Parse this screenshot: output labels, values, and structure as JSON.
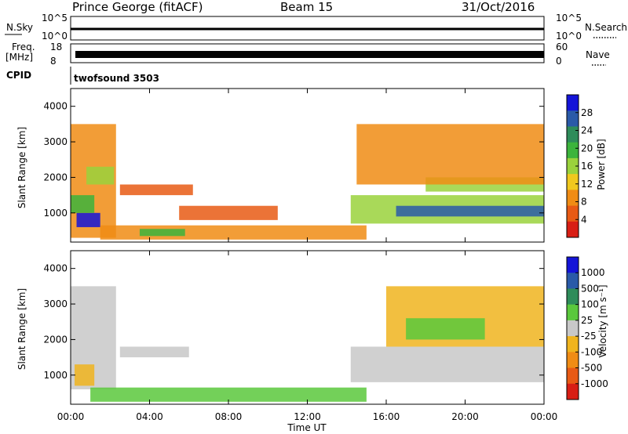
{
  "header": {
    "station": "Prince George (fitACF)",
    "beam": "Beam 15",
    "date": "31/Oct/2016"
  },
  "strip": {
    "nsky_label": "N.Sky",
    "nsky_ticks": [
      "10^5",
      "10^0"
    ],
    "nsearch_label": "N.Search",
    "nsearch_ticks": [
      "10^5",
      "10^0"
    ],
    "freq_label": "Freq.",
    "freq_unit": "[MHz]",
    "freq_ticks": [
      "18",
      "8"
    ],
    "nave_label": "Nave",
    "nave_ticks": [
      "60",
      "0"
    ],
    "cpid_label": "CPID",
    "cpid_value": "twofsound 3503"
  },
  "colors": {
    "power_scale": [
      "#1414d8",
      "#2a5aa8",
      "#2e8c5a",
      "#3cb43c",
      "#9ad23c",
      "#f0c81e",
      "#f08c14",
      "#e85a14",
      "#d81e14"
    ],
    "velocity_scale": [
      "#1414d8",
      "#2a5aa8",
      "#2e8c5a",
      "#5ac83c",
      "#c8c8c8",
      "#f0b41e",
      "#f08c14",
      "#e85a14",
      "#d81e14"
    ],
    "ground_scatter": "#c0c0c0"
  },
  "chart_data": [
    {
      "type": "heatmap",
      "panel": "power",
      "xlabel": "Time UT",
      "ylabel": "Slant Range [km]",
      "xlim": [
        0,
        24
      ],
      "ylim": [
        180,
        4500
      ],
      "x_ticks": [
        "00:00",
        "04:00",
        "08:00",
        "12:00",
        "16:00",
        "20:00",
        "00:00"
      ],
      "y_ticks": [
        1000,
        2000,
        3000,
        4000
      ],
      "colorbar": {
        "label": "Power [dB]",
        "ticks": [
          "28",
          "24",
          "20",
          "16",
          "12",
          "8",
          "4"
        ],
        "range": [
          0,
          30
        ]
      },
      "regions": [
        {
          "t0": 0.0,
          "t1": 2.3,
          "r0": 300,
          "r1": 3500,
          "value": 10
        },
        {
          "t0": 0.3,
          "t1": 1.5,
          "r0": 600,
          "r1": 1000,
          "value": 27
        },
        {
          "t0": 0.0,
          "t1": 1.2,
          "r0": 1000,
          "r1": 1500,
          "value": 18
        },
        {
          "t0": 0.8,
          "t1": 2.2,
          "r0": 1800,
          "r1": 2300,
          "value": 14
        },
        {
          "t0": 1.5,
          "t1": 15.0,
          "r0": 250,
          "r1": 650,
          "value": 8
        },
        {
          "t0": 3.5,
          "t1": 5.8,
          "r0": 350,
          "r1": 550,
          "value": 20
        },
        {
          "t0": 2.5,
          "t1": 6.2,
          "r0": 1500,
          "r1": 1800,
          "value": 6
        },
        {
          "t0": 5.5,
          "t1": 10.5,
          "r0": 800,
          "r1": 1200,
          "value": 6
        },
        {
          "t0": 14.2,
          "t1": 24.0,
          "r0": 700,
          "r1": 1500,
          "value": 14
        },
        {
          "t0": 16.5,
          "t1": 24.0,
          "r0": 900,
          "r1": 1200,
          "value": 24
        },
        {
          "t0": 18.0,
          "t1": 24.0,
          "r0": 1600,
          "r1": 2000,
          "value": 16
        },
        {
          "t0": 14.5,
          "t1": 24.0,
          "r0": 1800,
          "r1": 3500,
          "value": 8
        }
      ]
    },
    {
      "type": "heatmap",
      "panel": "velocity",
      "xlabel": "Time UT",
      "ylabel": "Slant Range [km]",
      "xlim": [
        0,
        24
      ],
      "ylim": [
        180,
        4500
      ],
      "x_ticks": [
        "00:00",
        "04:00",
        "08:00",
        "12:00",
        "16:00",
        "20:00",
        "00:00"
      ],
      "y_ticks": [
        1000,
        2000,
        3000,
        4000
      ],
      "colorbar": {
        "label": "Velocity [m s⁻¹]",
        "ticks": [
          "1000",
          "500",
          "100",
          "25",
          "-25",
          "-100",
          "-500",
          "-1000"
        ],
        "range": [
          -1000,
          1000
        ]
      },
      "regions": [
        {
          "t0": 0.0,
          "t1": 2.3,
          "r0": 600,
          "r1": 3500,
          "value": 0
        },
        {
          "t0": 0.2,
          "t1": 1.2,
          "r0": 700,
          "r1": 1300,
          "value": -150
        },
        {
          "t0": 1.0,
          "t1": 15.0,
          "r0": 250,
          "r1": 650,
          "value": 150
        },
        {
          "t0": 2.5,
          "t1": 6.0,
          "r0": 1500,
          "r1": 1800,
          "value": 0
        },
        {
          "t0": 14.2,
          "t1": 24.0,
          "r0": 800,
          "r1": 1800,
          "value": 0
        },
        {
          "t0": 16.0,
          "t1": 24.0,
          "r0": 1800,
          "r1": 3500,
          "value": -200
        },
        {
          "t0": 17.0,
          "t1": 21.0,
          "r0": 2000,
          "r1": 2600,
          "value": 120
        }
      ]
    }
  ]
}
